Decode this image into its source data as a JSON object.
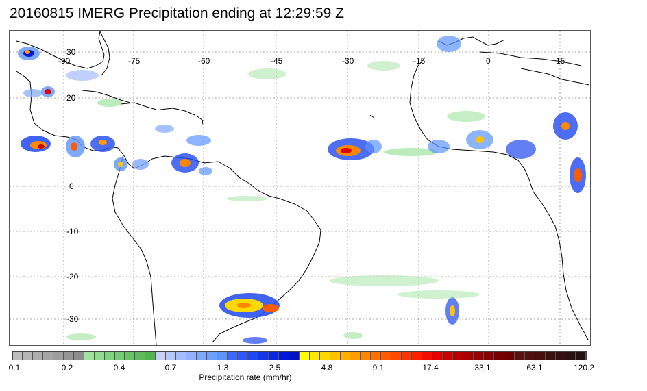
{
  "title": "20160815 IMERG Precipitation ending at 12:29:59 Z",
  "map": {
    "lon_labels": [
      "-90",
      "-75",
      "-60",
      "-45",
      "-30",
      "-15",
      "0",
      "15"
    ],
    "lat_labels": [
      "30",
      "20",
      "0",
      "-10",
      "-20",
      "-30"
    ],
    "gridline_color": "#888888",
    "coastline_color": "#000000"
  },
  "colorbar": {
    "title": "Precipitation rate (mm/hr)",
    "tick_labels": [
      "0.1",
      "0.2",
      "0.4",
      "0.7",
      "1.3",
      "2.5",
      "4.8",
      "9.1",
      "17.4",
      "33.1",
      "63.1",
      "120.2"
    ],
    "colors": [
      "#bdbdbd",
      "#b5b5b5",
      "#adadad",
      "#a5a5a5",
      "#9d9d9d",
      "#959595",
      "#8d8d8d",
      "#9fe39f",
      "#8fdc8f",
      "#7fd47f",
      "#74cc74",
      "#68c468",
      "#5cbc5c",
      "#50b450",
      "#c8d0f8",
      "#b6c8fa",
      "#a4bcfb",
      "#92b2fc",
      "#80a8fd",
      "#6e9efe",
      "#5c94ff",
      "#3c68ff",
      "#2e58fa",
      "#2048f0",
      "#1238e8",
      "#0828e0",
      "#0018d8",
      "#0010c8",
      "#ffff00",
      "#ffe800",
      "#ffd800",
      "#ffc400",
      "#ffb000",
      "#ff9c00",
      "#ff8800",
      "#ff7000",
      "#ff5c00",
      "#ff4800",
      "#ff3400",
      "#ff2000",
      "#f01000",
      "#e00000",
      "#c80000",
      "#b80000",
      "#a80000",
      "#980000",
      "#880000",
      "#780000",
      "#6a0000",
      "#5c1010",
      "#521010",
      "#481010",
      "#3e1010",
      "#341010",
      "#2c1010",
      "#241010"
    ]
  }
}
